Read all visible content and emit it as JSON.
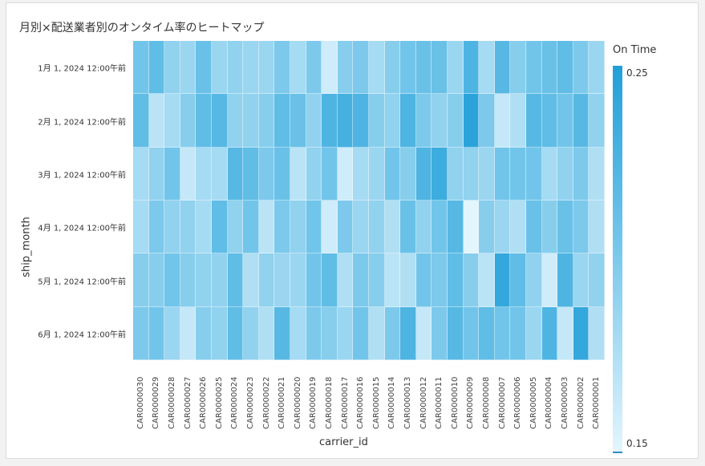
{
  "title": "月別×配送業者別のオンタイム率のヒートマップ",
  "chart_data": {
    "type": "heatmap",
    "title": "月別×配送業者別のオンタイム率のヒートマップ",
    "xlabel": "carrier_id",
    "ylabel": "ship_month",
    "x": [
      "CAR0000030",
      "CAR0000029",
      "CAR0000028",
      "CAR0000027",
      "CAR0000026",
      "CAR0000025",
      "CAR0000024",
      "CAR0000023",
      "CAR0000022",
      "CAR0000021",
      "CAR0000020",
      "CAR0000019",
      "CAR0000018",
      "CAR0000017",
      "CAR0000016",
      "CAR0000015",
      "CAR0000014",
      "CAR0000013",
      "CAR0000012",
      "CAR0000011",
      "CAR0000010",
      "CAR0000009",
      "CAR0000008",
      "CAR0000007",
      "CAR0000006",
      "CAR0000005",
      "CAR0000004",
      "CAR0000003",
      "CAR0000002",
      "CAR0000001"
    ],
    "y": [
      "1月 1, 2024 12:00午前",
      "2月 1, 2024 12:00午前",
      "3月 1, 2024 12:00午前",
      "4月 1, 2024 12:00午前",
      "5月 1, 2024 12:00午前",
      "6月 1, 2024 12:00午前"
    ],
    "values": [
      [
        0.205,
        0.215,
        0.19,
        0.185,
        0.21,
        0.185,
        0.19,
        0.185,
        0.185,
        0.2,
        0.18,
        0.2,
        0.16,
        0.195,
        0.2,
        0.18,
        0.195,
        0.205,
        0.21,
        0.21,
        0.185,
        0.225,
        0.18,
        0.22,
        0.195,
        0.205,
        0.21,
        0.215,
        0.2,
        0.185
      ],
      [
        0.215,
        0.17,
        0.18,
        0.195,
        0.215,
        0.22,
        0.19,
        0.19,
        0.195,
        0.215,
        0.21,
        0.19,
        0.225,
        0.23,
        0.225,
        0.195,
        0.19,
        0.225,
        0.2,
        0.19,
        0.195,
        0.245,
        0.2,
        0.165,
        0.175,
        0.22,
        0.215,
        0.205,
        0.22,
        0.19
      ],
      [
        0.18,
        0.19,
        0.205,
        0.165,
        0.18,
        0.18,
        0.22,
        0.215,
        0.2,
        0.21,
        0.17,
        0.19,
        0.205,
        0.16,
        0.18,
        0.185,
        0.205,
        0.195,
        0.225,
        0.235,
        0.19,
        0.19,
        0.185,
        0.205,
        0.205,
        0.205,
        0.18,
        0.19,
        0.2,
        0.175
      ],
      [
        0.18,
        0.2,
        0.19,
        0.19,
        0.18,
        0.215,
        0.19,
        0.205,
        0.17,
        0.2,
        0.19,
        0.205,
        0.16,
        0.2,
        0.185,
        0.19,
        0.175,
        0.21,
        0.19,
        0.205,
        0.22,
        0.15,
        0.195,
        0.185,
        0.175,
        0.21,
        0.195,
        0.21,
        0.2,
        0.175
      ],
      [
        0.195,
        0.195,
        0.205,
        0.195,
        0.19,
        0.19,
        0.215,
        0.175,
        0.19,
        0.185,
        0.185,
        0.205,
        0.215,
        0.175,
        0.2,
        0.195,
        0.17,
        0.175,
        0.205,
        0.2,
        0.215,
        0.195,
        0.17,
        0.24,
        0.215,
        0.19,
        0.16,
        0.225,
        0.185,
        0.19
      ],
      [
        0.2,
        0.205,
        0.185,
        0.165,
        0.195,
        0.19,
        0.215,
        0.19,
        0.175,
        0.22,
        0.18,
        0.2,
        0.195,
        0.185,
        0.205,
        0.175,
        0.2,
        0.225,
        0.165,
        0.2,
        0.22,
        0.205,
        0.215,
        0.205,
        0.205,
        0.185,
        0.225,
        0.165,
        0.24,
        0.175
      ]
    ],
    "legend": {
      "title": "On Time",
      "min": 0.15,
      "max": 0.25,
      "position": "right"
    },
    "colors": {
      "low": "#e3f5fd",
      "high": "#229fd8"
    },
    "grid": false
  },
  "legend": {
    "title": "On Time",
    "max_label": "0.25",
    "min_label": "0.15"
  },
  "axes": {
    "x_title": "carrier_id",
    "y_title": "ship_month"
  }
}
